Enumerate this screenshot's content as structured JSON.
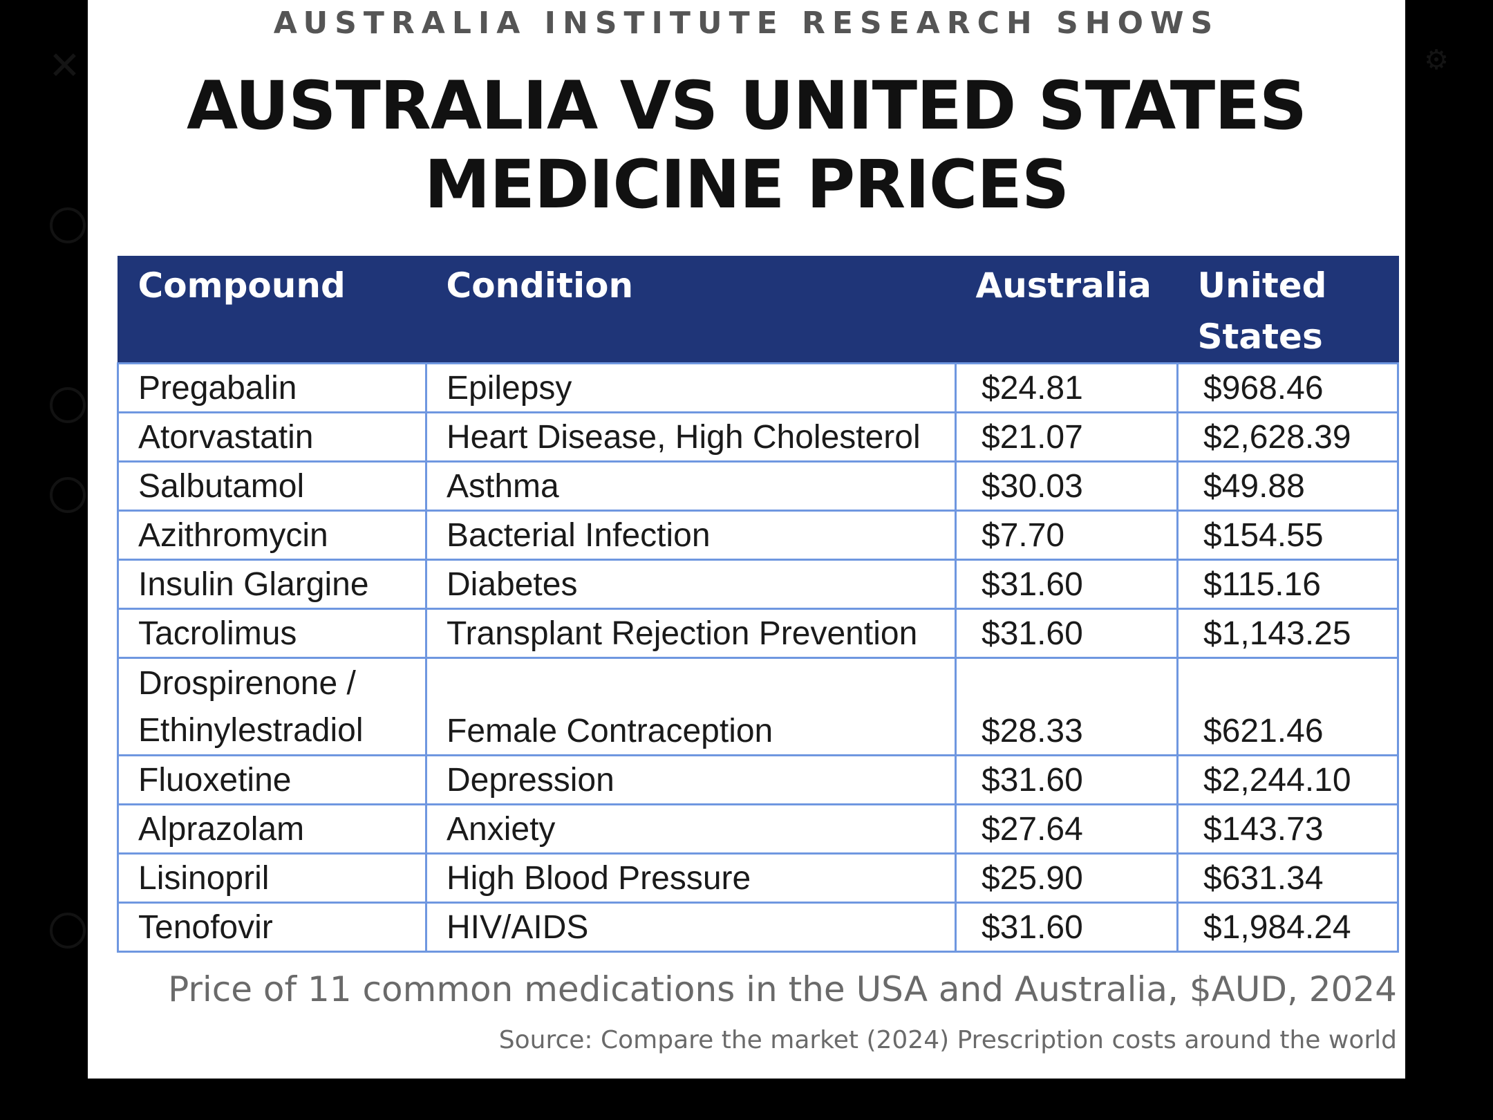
{
  "kicker": "AUSTRALIA INSTITUTE RESEARCH SHOWS",
  "headline": {
    "line1": "AUSTRALIA VS UNITED STATES",
    "line2": "MEDICINE PRICES"
  },
  "table": {
    "headers": [
      "Compound",
      "Condition",
      "Australia",
      "United States"
    ],
    "rows": [
      {
        "compound": "Pregabalin",
        "condition": "Epilepsy",
        "australia": "$24.81",
        "us": "$968.46"
      },
      {
        "compound": "Atorvastatin",
        "condition": "Heart Disease, High Cholesterol",
        "australia": "$21.07",
        "us": "$2,628.39"
      },
      {
        "compound": "Salbutamol",
        "condition": "Asthma",
        "australia": "$30.03",
        "us": "$49.88"
      },
      {
        "compound": "Azithromycin",
        "condition": "Bacterial Infection",
        "australia": "$7.70",
        "us": "$154.55"
      },
      {
        "compound": "Insulin Glargine",
        "condition": "Diabetes",
        "australia": "$31.60",
        "us": "$115.16"
      },
      {
        "compound": "Tacrolimus",
        "condition": "Transplant Rejection Prevention",
        "australia": "$31.60",
        "us": "$1,143.25"
      },
      {
        "compound_line1": "Drospirenone /",
        "compound_line2": "Ethinylestradiol",
        "condition": "Female Contraception",
        "australia": "$28.33",
        "us": "$621.46"
      },
      {
        "compound": "Fluoxetine",
        "condition": "Depression",
        "australia": "$31.60",
        "us": "$2,244.10"
      },
      {
        "compound": "Alprazolam",
        "condition": "Anxiety",
        "australia": "$27.64",
        "us": "$143.73"
      },
      {
        "compound": "Lisinopril",
        "condition": "High Blood Pressure",
        "australia": "$25.90",
        "us": "$631.34"
      },
      {
        "compound": "Tenofovir",
        "condition": "HIV/AIDS",
        "australia": "$31.60",
        "us": "$1,984.24"
      }
    ]
  },
  "caption": "Price of 11 common medications in the USA and Australia, $AUD, 2024",
  "source": "Source: Compare the market (2024) Prescription costs around the world",
  "viewer": {
    "close_icon": "close-icon",
    "more_icon": "more-options-icon",
    "settings_icon": "gear-icon"
  }
}
